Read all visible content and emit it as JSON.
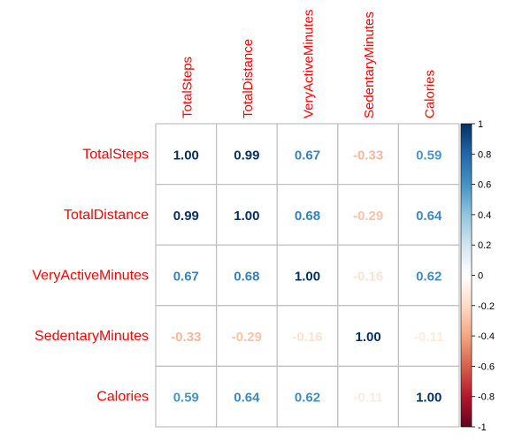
{
  "chart_data": {
    "type": "heatmap",
    "variables": [
      "TotalSteps",
      "TotalDistance",
      "VeryActiveMinutes",
      "SedentaryMinutes",
      "Calories"
    ],
    "matrix": [
      [
        1.0,
        0.99,
        0.67,
        -0.33,
        0.59
      ],
      [
        0.99,
        1.0,
        0.68,
        -0.29,
        0.64
      ],
      [
        0.67,
        0.68,
        1.0,
        -0.16,
        0.62
      ],
      [
        -0.33,
        -0.29,
        -0.16,
        1.0,
        -0.11
      ],
      [
        0.59,
        0.64,
        0.62,
        -0.11,
        1.0
      ]
    ],
    "value_labels": [
      [
        "1.00",
        "0.99",
        "0.67",
        "-0.33",
        "0.59"
      ],
      [
        "0.99",
        "1.00",
        "0.68",
        "-0.29",
        "0.64"
      ],
      [
        "0.67",
        "0.68",
        "1.00",
        "-0.16",
        "0.62"
      ],
      [
        "-0.33",
        "-0.29",
        "-0.16",
        "1.00",
        "-0.11"
      ],
      [
        "0.59",
        "0.64",
        "0.62",
        "-0.11",
        "1.00"
      ]
    ],
    "colorbar": {
      "range": [
        -1,
        1
      ],
      "ticks": [
        1,
        0.8,
        0.6,
        0.4,
        0.2,
        0,
        -0.2,
        -0.4,
        -0.6,
        -0.8,
        -1
      ],
      "tick_labels": [
        "1",
        "0.8",
        "0.6",
        "0.4",
        "0.2",
        "0",
        "-0.2",
        "-0.4",
        "-0.6",
        "-0.8",
        "-1"
      ]
    },
    "colors": {
      "label_color": "#FF0000",
      "grid_color": "#BEBEBE",
      "tick_text_color": "#000000",
      "scale": [
        "#67001F",
        "#B2182B",
        "#D6604D",
        "#F4A582",
        "#FDDBC7",
        "#FFFFFF",
        "#D1E5F0",
        "#92C5DE",
        "#4393C3",
        "#2166AC",
        "#053061"
      ]
    },
    "title": "",
    "xlabel": "",
    "ylabel": ""
  }
}
